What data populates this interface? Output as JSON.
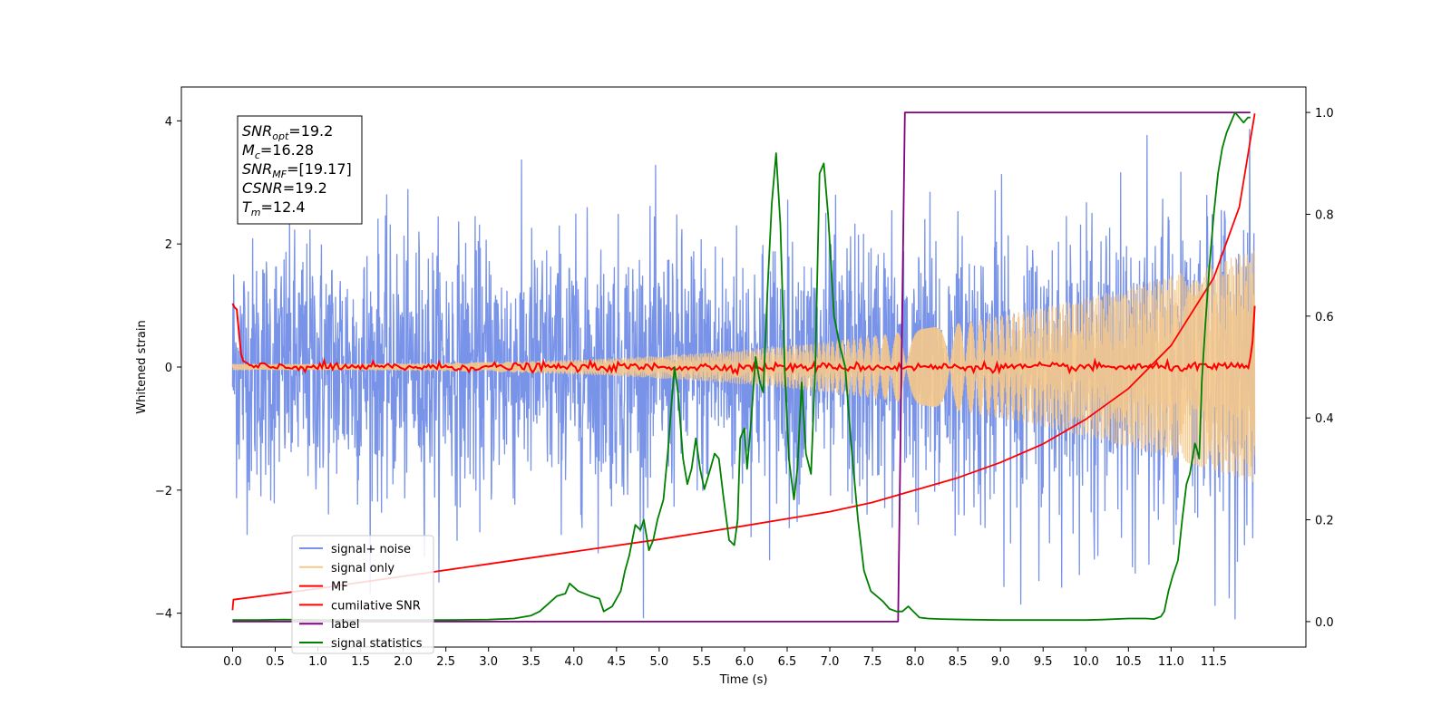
{
  "chart_data": {
    "type": "line",
    "title": "",
    "xlabel": "Time (s)",
    "ylabel": "Whitened strain",
    "y2label": "",
    "xlim": [
      -0.6,
      12.58
    ],
    "ylim": [
      -4.55,
      4.55
    ],
    "y2lim": [
      -0.05,
      1.05
    ],
    "xticks": [
      0.0,
      0.5,
      1.0,
      1.5,
      2.0,
      2.5,
      3.0,
      3.5,
      4.0,
      4.5,
      5.0,
      5.5,
      6.0,
      6.5,
      7.0,
      7.5,
      8.0,
      8.5,
      9.0,
      9.5,
      10.0,
      10.5,
      11.0,
      11.5
    ],
    "xtick_labels": [
      "0.0",
      "0.5",
      "1.0",
      "1.5",
      "2.0",
      "2.5",
      "3.0",
      "3.5",
      "4.0",
      "4.5",
      "5.0",
      "5.5",
      "6.0",
      "6.5",
      "7.0",
      "7.5",
      "8.0",
      "8.5",
      "9.0",
      "9.5",
      "10.0",
      "10.5",
      "11.0",
      "11.5"
    ],
    "yticks": [
      -4,
      -2,
      0,
      2,
      4
    ],
    "ytick_labels": [
      "−4",
      "−2",
      "0",
      "2",
      "4"
    ],
    "y2ticks": [
      0.0,
      0.2,
      0.4,
      0.6,
      0.8,
      1.0
    ],
    "y2tick_labels": [
      "0.0",
      "0.2",
      "0.4",
      "0.6",
      "0.8",
      "1.0"
    ],
    "grid": false,
    "legend_position": "bottom-left",
    "annotation_box": [
      {
        "sym": "SNR",
        "sub": "opt",
        "value": "=19.2"
      },
      {
        "sym": "M",
        "sub": "c",
        "value": "=16.28"
      },
      {
        "sym": "SNR",
        "sub": "MF",
        "value": "=[19.17]"
      },
      {
        "sym": "CSNR",
        "sub": "",
        "value": "=19.2"
      },
      {
        "sym": "T",
        "sub": "m",
        "value": "=12.4"
      }
    ],
    "series": [
      {
        "name": "signal+ noise",
        "color": "#7893e8",
        "axis": "left",
        "kind": "noise",
        "x_range": [
          0.0,
          11.98
        ],
        "amplitude_sigma": 1.0
      },
      {
        "name": "signal only",
        "color": "#f5c98a",
        "axis": "left",
        "kind": "chirp",
        "x_range": [
          0.0,
          11.98
        ],
        "amplitude_start": 0.05,
        "amplitude_end": 1.9
      },
      {
        "name": "MF",
        "color": "#ff0000",
        "axis": "left",
        "kind": "mf",
        "x": [
          0.0,
          0.05,
          0.1,
          0.15,
          0.25,
          0.5,
          11.9,
          11.95,
          11.98
        ],
        "y": [
          1.0,
          0.9,
          0.2,
          0.05,
          0.0,
          0.0,
          0.0,
          0.3,
          1.0
        ]
      },
      {
        "name": "cumilative SNR",
        "color": "#ff0000",
        "axis": "left",
        "x": [
          0.0,
          0.01,
          1.0,
          2.0,
          3.0,
          4.0,
          5.0,
          6.0,
          7.0,
          7.5,
          8.0,
          8.5,
          9.0,
          9.5,
          10.0,
          10.5,
          11.0,
          11.5,
          11.8,
          11.98
        ],
        "y": [
          -3.95,
          -3.78,
          -3.6,
          -3.4,
          -3.2,
          -3.0,
          -2.8,
          -2.58,
          -2.35,
          -2.2,
          -2.0,
          -1.8,
          -1.55,
          -1.25,
          -0.85,
          -0.35,
          0.35,
          1.45,
          2.6,
          4.12
        ]
      },
      {
        "name": "label",
        "color": "#800080",
        "axis": "right",
        "x": [
          0.0,
          7.8,
          7.88,
          11.93
        ],
        "y": [
          0.0,
          0.0,
          1.0,
          1.0
        ]
      },
      {
        "name": "signal statistics",
        "color": "#008000",
        "axis": "right",
        "x": [
          0.0,
          0.3,
          0.6,
          1.0,
          1.5,
          2.0,
          2.5,
          3.0,
          3.3,
          3.5,
          3.6,
          3.7,
          3.8,
          3.9,
          3.95,
          4.05,
          4.2,
          4.3,
          4.35,
          4.45,
          4.55,
          4.6,
          4.65,
          4.72,
          4.78,
          4.82,
          4.88,
          4.93,
          4.98,
          5.05,
          5.1,
          5.15,
          5.18,
          5.22,
          5.28,
          5.33,
          5.38,
          5.43,
          5.48,
          5.53,
          5.6,
          5.65,
          5.7,
          5.75,
          5.82,
          5.88,
          5.92,
          5.95,
          6.0,
          6.03,
          6.08,
          6.13,
          6.18,
          6.22,
          6.27,
          6.32,
          6.37,
          6.42,
          6.47,
          6.52,
          6.58,
          6.62,
          6.67,
          6.72,
          6.78,
          6.83,
          6.88,
          6.93,
          6.98,
          7.05,
          7.12,
          7.18,
          7.25,
          7.33,
          7.4,
          7.48,
          7.55,
          7.62,
          7.7,
          7.78,
          7.85,
          7.92,
          7.98,
          8.05,
          8.15,
          8.3,
          8.6,
          9.0,
          9.5,
          10.0,
          10.2,
          10.5,
          10.7,
          10.8,
          10.88,
          10.92,
          10.97,
          11.02,
          11.08,
          11.13,
          11.18,
          11.22,
          11.25,
          11.28,
          11.3,
          11.33,
          11.36,
          11.4,
          11.45,
          11.5,
          11.55,
          11.6,
          11.65,
          11.7,
          11.75,
          11.8,
          11.85,
          11.9,
          11.93
        ],
        "y": [
          0.003,
          0.003,
          0.004,
          0.003,
          0.003,
          0.003,
          0.003,
          0.004,
          0.006,
          0.012,
          0.02,
          0.035,
          0.05,
          0.055,
          0.075,
          0.06,
          0.05,
          0.045,
          0.02,
          0.03,
          0.06,
          0.1,
          0.13,
          0.19,
          0.18,
          0.2,
          0.14,
          0.16,
          0.2,
          0.24,
          0.33,
          0.44,
          0.5,
          0.45,
          0.32,
          0.27,
          0.3,
          0.36,
          0.3,
          0.26,
          0.3,
          0.33,
          0.32,
          0.25,
          0.16,
          0.15,
          0.2,
          0.36,
          0.38,
          0.3,
          0.4,
          0.52,
          0.47,
          0.45,
          0.65,
          0.82,
          0.92,
          0.78,
          0.5,
          0.32,
          0.24,
          0.3,
          0.47,
          0.33,
          0.29,
          0.5,
          0.88,
          0.9,
          0.8,
          0.6,
          0.54,
          0.5,
          0.35,
          0.2,
          0.1,
          0.06,
          0.05,
          0.04,
          0.025,
          0.02,
          0.02,
          0.03,
          0.02,
          0.008,
          0.006,
          0.005,
          0.004,
          0.003,
          0.003,
          0.003,
          0.004,
          0.006,
          0.006,
          0.005,
          0.01,
          0.02,
          0.06,
          0.09,
          0.12,
          0.2,
          0.27,
          0.29,
          0.32,
          0.35,
          0.34,
          0.32,
          0.47,
          0.58,
          0.7,
          0.8,
          0.88,
          0.93,
          0.96,
          0.98,
          1.0,
          0.99,
          0.98,
          0.99,
          0.99
        ]
      }
    ]
  }
}
